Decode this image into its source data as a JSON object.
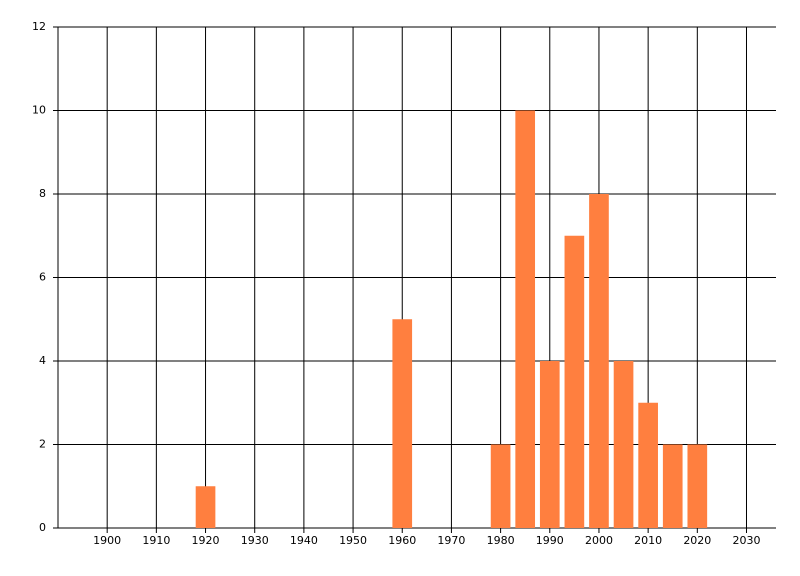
{
  "chart_data": {
    "type": "bar",
    "x": [
      1920,
      1960,
      1980,
      1985,
      1990,
      1995,
      2000,
      2005,
      2010,
      2015,
      2020
    ],
    "values": [
      1,
      5,
      2,
      10,
      4,
      7,
      8,
      4,
      3,
      2,
      2
    ],
    "color": "#ff7f3f",
    "xlim": [
      1890,
      2036
    ],
    "xticks": [
      1900,
      1910,
      1920,
      1930,
      1940,
      1950,
      1960,
      1970,
      1980,
      1990,
      2000,
      2010,
      2020,
      2030
    ],
    "ylim": [
      0,
      12
    ],
    "yticks": [
      0,
      2,
      4,
      6,
      8,
      10,
      12
    ],
    "grid": true
  }
}
